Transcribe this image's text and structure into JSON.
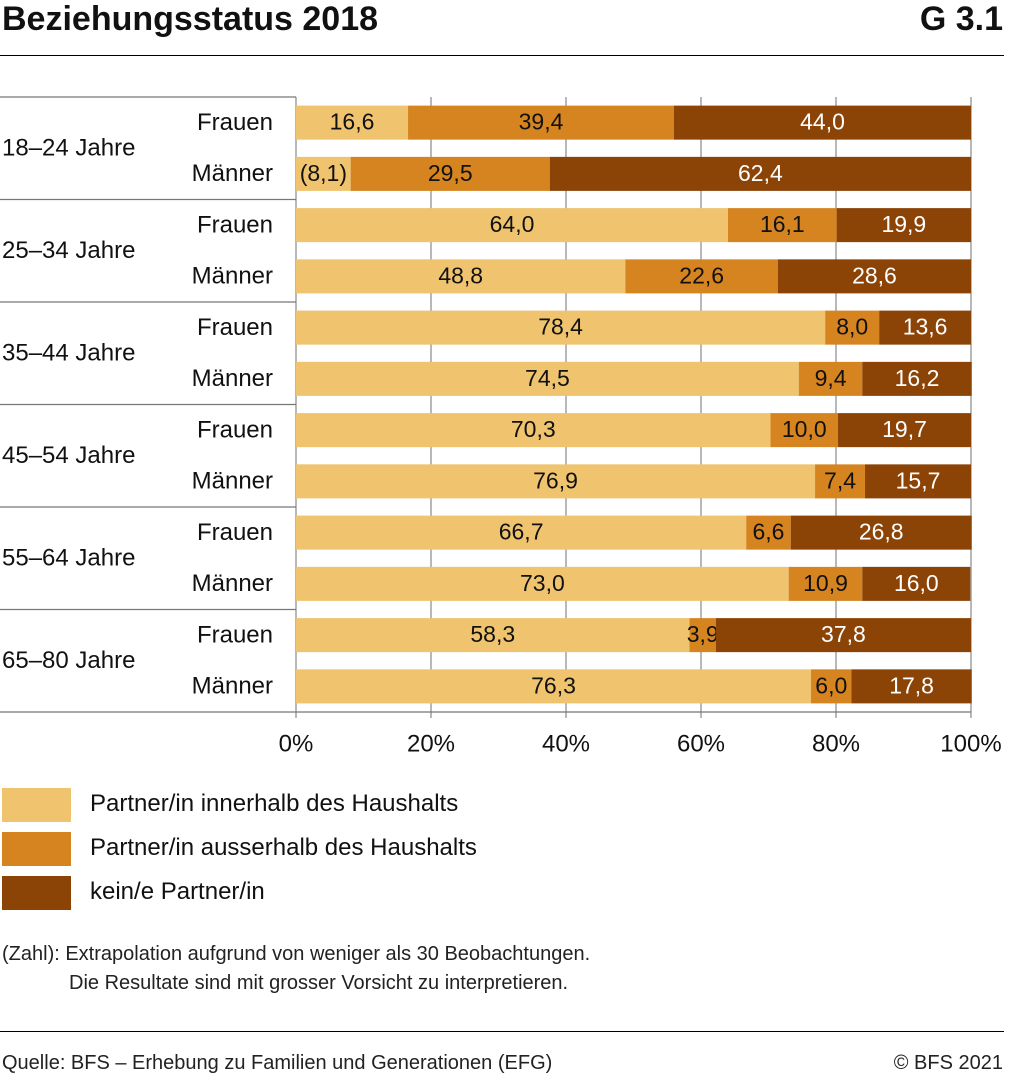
{
  "header": {
    "title": "Beziehungsstatus 2018",
    "graphic_number": "G 3.1"
  },
  "colors": {
    "innerhalb": "#F0C46E",
    "ausserhalb": "#D58420",
    "kein": "#8C4306",
    "background_band": "#EBEBEB",
    "grid": "#A0A0A0"
  },
  "chart_data": {
    "type": "bar",
    "orientation": "horizontal",
    "stacked": true,
    "xlim": [
      0,
      100
    ],
    "x_ticks": [
      "0%",
      "20%",
      "40%",
      "60%",
      "80%",
      "100%"
    ],
    "groups": [
      {
        "label": "18–24 Jahre",
        "rows": [
          {
            "label": "Frauen",
            "values": [
              16.6,
              39.4,
              44.0
            ],
            "labels": [
              "16,6",
              "39,4",
              "44,0"
            ]
          },
          {
            "label": "Männer",
            "values": [
              8.1,
              29.5,
              62.4
            ],
            "labels": [
              "(8,1)",
              "29,5",
              "62,4"
            ]
          }
        ]
      },
      {
        "label": "25–34 Jahre",
        "rows": [
          {
            "label": "Frauen",
            "values": [
              64.0,
              16.1,
              19.9
            ],
            "labels": [
              "64,0",
              "16,1",
              "19,9"
            ]
          },
          {
            "label": "Männer",
            "values": [
              48.8,
              22.6,
              28.6
            ],
            "labels": [
              "48,8",
              "22,6",
              "28,6"
            ]
          }
        ]
      },
      {
        "label": "35–44 Jahre",
        "rows": [
          {
            "label": "Frauen",
            "values": [
              78.4,
              8.0,
              13.6
            ],
            "labels": [
              "78,4",
              "8,0",
              "13,6"
            ]
          },
          {
            "label": "Männer",
            "values": [
              74.5,
              9.4,
              16.2
            ],
            "labels": [
              "74,5",
              "9,4",
              "16,2"
            ]
          }
        ]
      },
      {
        "label": "45–54 Jahre",
        "rows": [
          {
            "label": "Frauen",
            "values": [
              70.3,
              10.0,
              19.7
            ],
            "labels": [
              "70,3",
              "10,0",
              "19,7"
            ]
          },
          {
            "label": "Männer",
            "values": [
              76.9,
              7.4,
              15.7
            ],
            "labels": [
              "76,9",
              "7,4",
              "15,7"
            ]
          }
        ]
      },
      {
        "label": "55–64 Jahre",
        "rows": [
          {
            "label": "Frauen",
            "values": [
              66.7,
              6.6,
              26.8
            ],
            "labels": [
              "66,7",
              "6,6",
              "26,8"
            ]
          },
          {
            "label": "Männer",
            "values": [
              73.0,
              10.9,
              16.0
            ],
            "labels": [
              "73,0",
              "10,9",
              "16,0"
            ]
          }
        ]
      },
      {
        "label": "65–80 Jahre",
        "rows": [
          {
            "label": "Frauen",
            "values": [
              58.3,
              3.9,
              37.8
            ],
            "labels": [
              "58,3",
              "3,9",
              "37,8"
            ]
          },
          {
            "label": "Männer",
            "values": [
              76.3,
              6.0,
              17.8
            ],
            "labels": [
              "76,3",
              "6,0",
              "17,8"
            ]
          }
        ]
      }
    ],
    "series": [
      {
        "name": "Partner/in innerhalb des Haushalts",
        "color": "#F0C46E"
      },
      {
        "name": "Partner/in ausserhalb des Haushalts",
        "color": "#D58420"
      },
      {
        "name": "kein/e Partner/in",
        "color": "#8C4306"
      }
    ]
  },
  "legend": {
    "items": [
      {
        "label": "Partner/in innerhalb des Haushalts",
        "color": "#F0C46E"
      },
      {
        "label": "Partner/in ausserhalb des Haushalts",
        "color": "#D58420"
      },
      {
        "label": "kein/e Partner/in",
        "color": "#8C4306"
      }
    ]
  },
  "note": {
    "line1": "(Zahl): Extrapolation aufgrund von weniger als 30 Beobachtungen.",
    "line2": "Die Resultate sind mit grosser Vorsicht zu interpretieren."
  },
  "footer": {
    "source": "Quelle: BFS – Erhebung zu Familien und Generationen (EFG)",
    "copyright": "© BFS 2021"
  }
}
